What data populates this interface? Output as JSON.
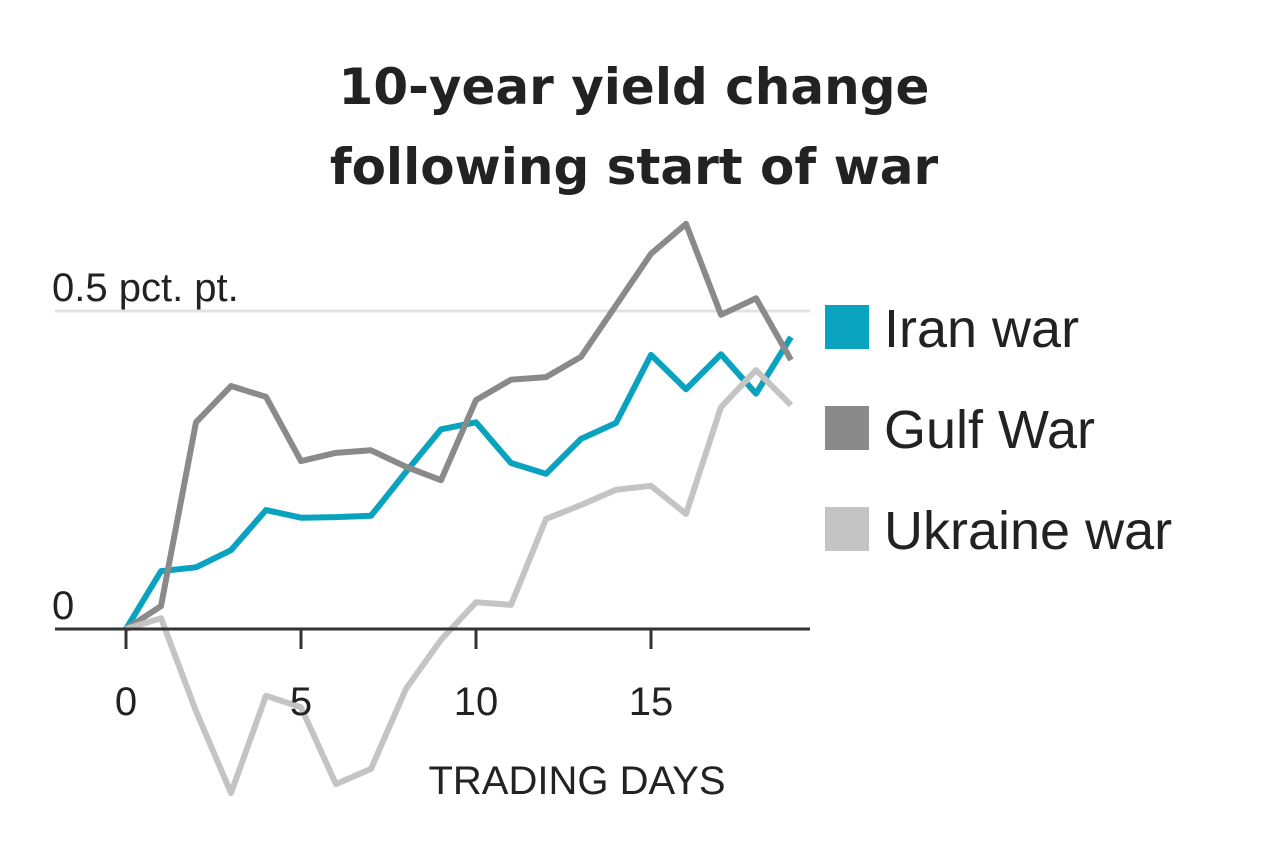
{
  "chart_data": {
    "type": "line",
    "title_lines": [
      "10-year yield change",
      "following start of war"
    ],
    "xlabel": "TRADING DAYS",
    "ylabel": "",
    "x": [
      0,
      1,
      2,
      3,
      4,
      5,
      6,
      7,
      8,
      9,
      10,
      11,
      12,
      13,
      14,
      15,
      16,
      17,
      18,
      19
    ],
    "x_ticks": [
      0,
      5,
      10,
      15
    ],
    "x_tick_labels": [
      "0",
      "5",
      "10",
      "15"
    ],
    "y_ticks": [
      0,
      0.5
    ],
    "y_tick_labels": [
      "0",
      "0.5 pct. pt."
    ],
    "xlim": [
      -2,
      19.5
    ],
    "ylim": [
      -0.26,
      0.64
    ],
    "grid": "horizontal at 0.5",
    "legend_placement": "right",
    "series": [
      {
        "name": "Iran war",
        "color": "#0aa3bf",
        "values": [
          0,
          0.091,
          0.097,
          0.124,
          0.187,
          0.175,
          0.176,
          0.178,
          0.247,
          0.314,
          0.325,
          0.261,
          0.244,
          0.299,
          0.324,
          0.431,
          0.377,
          0.432,
          0.37,
          0.459
        ]
      },
      {
        "name": "Gulf War",
        "color": "#8a8a8a",
        "values": [
          0,
          0.036,
          0.325,
          0.382,
          0.365,
          0.264,
          0.277,
          0.281,
          0.255,
          0.234,
          0.36,
          0.392,
          0.396,
          0.428,
          0.509,
          0.59,
          0.637,
          0.494,
          0.52,
          0.423
        ]
      },
      {
        "name": "Ukraine war",
        "color": "#c4c4c4",
        "values": [
          0,
          0.017,
          -0.129,
          -0.258,
          -0.105,
          -0.123,
          -0.244,
          -0.22,
          -0.094,
          -0.017,
          0.042,
          0.038,
          0.173,
          0.195,
          0.219,
          0.225,
          0.181,
          0.349,
          0.407,
          0.352
        ]
      }
    ]
  }
}
